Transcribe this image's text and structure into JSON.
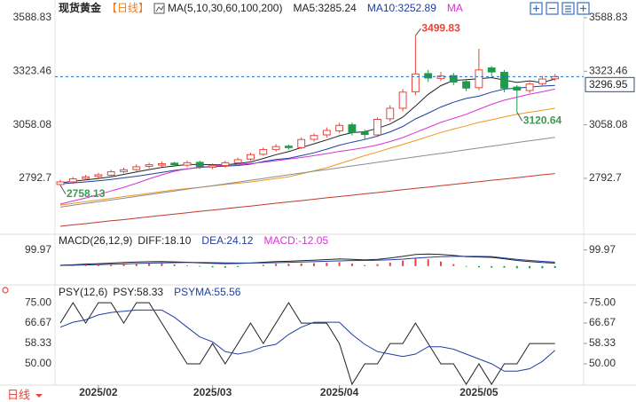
{
  "chart_data": [
    {
      "type": "candlestick",
      "title": "现货黄金",
      "period": "【日线】",
      "indicator": "MA(5,10,30,60,100,200)",
      "categories": [
        null,
        null,
        null,
        "2025/02",
        null,
        null,
        null,
        null,
        null,
        null,
        null,
        null,
        "2025/03",
        null,
        null,
        null,
        null,
        null,
        null,
        null,
        null,
        null,
        "2025/04",
        null,
        null,
        null,
        null,
        null,
        null,
        null,
        null,
        null,
        null,
        "2025/05",
        null,
        null,
        null,
        null,
        null,
        null
      ],
      "open": [
        2762,
        2775,
        2792,
        2802,
        2808,
        2826,
        2836,
        2852,
        2858,
        2868,
        2858,
        2872,
        2848,
        2856,
        2870,
        2888,
        2912,
        2936,
        2952,
        2945,
        2986,
        3008,
        3028,
        3058,
        3022,
        3008,
        3088,
        3140,
        3222,
        3312,
        3288,
        3302,
        3272,
        3242,
        3340,
        3318,
        3245,
        3228,
        3262,
        3286
      ],
      "high": [
        2785,
        2800,
        2810,
        2820,
        2835,
        2845,
        2862,
        2870,
        2876,
        2875,
        2880,
        2880,
        2866,
        2880,
        2895,
        2920,
        2945,
        2962,
        2960,
        2995,
        3015,
        3045,
        3068,
        3070,
        3035,
        3095,
        3155,
        3235,
        3499.83,
        3330,
        3320,
        3315,
        3285,
        3435,
        3350,
        3330,
        3255,
        3270,
        3300,
        3310
      ],
      "low": [
        2758.13,
        2765,
        2782,
        2795,
        2800,
        2818,
        2828,
        2842,
        2850,
        2850,
        2848,
        2840,
        2838,
        2846,
        2862,
        2880,
        2905,
        2925,
        2935,
        2938,
        2975,
        2995,
        3018,
        3005,
        2985,
        2998,
        3075,
        3125,
        3205,
        3270,
        3275,
        3255,
        3225,
        3230,
        3300,
        3220,
        3120.64,
        3215,
        3250,
        3275
      ],
      "close": [
        2775,
        2790,
        2800,
        2810,
        2825,
        2835,
        2850,
        2860,
        2865,
        2860,
        2870,
        2850,
        2855,
        2870,
        2885,
        2910,
        2935,
        2950,
        2945,
        2985,
        3005,
        3030,
        3055,
        3020,
        3010,
        3085,
        3140,
        3220,
        3310,
        3290,
        3300,
        3270,
        3240,
        3330,
        3320,
        3240,
        3230,
        3260,
        3285,
        3296.95
      ],
      "up_color": "#e8453c",
      "down_color": "#1f9a4b",
      "series": [
        {
          "name": "MA5:3285.24",
          "color": "#222222",
          "values": [
            2770,
            2778,
            2785,
            2792,
            2800,
            2812,
            2824,
            2836,
            2847,
            2854,
            2861,
            2861,
            2860,
            2859,
            2866,
            2874,
            2891,
            2910,
            2925,
            2945,
            2964,
            2983,
            3004,
            3019,
            3024,
            3040,
            3062,
            3096,
            3151,
            3209,
            3252,
            3278,
            3282,
            3286,
            3292,
            3280,
            3268,
            3276,
            3267,
            3285.24
          ]
        },
        {
          "name": "MA10:3252.89",
          "color": "#1f3fa0",
          "values": [
            2765,
            2770,
            2775,
            2780,
            2787,
            2795,
            2803,
            2812,
            2822,
            2832,
            2840,
            2846,
            2851,
            2853,
            2856,
            2863,
            2876,
            2886,
            2892,
            2905,
            2919,
            2937,
            2957,
            2972,
            2985,
            3002,
            3023,
            3050,
            3087,
            3116,
            3146,
            3170,
            3189,
            3200,
            3220,
            3235,
            3240,
            3245,
            3250,
            3252.89
          ]
        },
        {
          "name": "MA",
          "color": "#d633d6",
          "values": [
            2665,
            2680,
            2695,
            2712,
            2730,
            2748,
            2768,
            2790,
            2810,
            2828,
            2840,
            2848,
            2853,
            2858,
            2862,
            2866,
            2872,
            2880,
            2888,
            2896,
            2905,
            2915,
            2926,
            2935,
            2945,
            2958,
            2975,
            2995,
            3020,
            3045,
            3070,
            3090,
            3110,
            3135,
            3160,
            3180,
            3195,
            3210,
            3222,
            3235
          ]
        },
        {
          "color": "#f0961e",
          "values": [
            2660,
            2668,
            2677,
            2685,
            2693,
            2702,
            2710,
            2718,
            2727,
            2735,
            2742,
            2748,
            2755,
            2762,
            2768,
            2775,
            2783,
            2792,
            2800,
            2815,
            2830,
            2845,
            2865,
            2885,
            2905,
            2923,
            2942,
            2960,
            2980,
            3000,
            3020,
            3037,
            3053,
            3070,
            3083,
            3097,
            3110,
            3120,
            3130,
            3140
          ]
        },
        {
          "color": "#8c8c8c",
          "values": [
            2650,
            2659,
            2668,
            2677,
            2685,
            2694,
            2703,
            2712,
            2721,
            2730,
            2739,
            2748,
            2756,
            2765,
            2774,
            2783,
            2792,
            2801,
            2810,
            2819,
            2828,
            2836,
            2845,
            2854,
            2863,
            2872,
            2881,
            2890,
            2899,
            2908,
            2916,
            2925,
            2934,
            2943,
            2952,
            2961,
            2970,
            2979,
            2987,
            2996
          ]
        },
        {
          "color": "#c0392b",
          "values": [
            2555,
            2562,
            2568,
            2575,
            2582,
            2588,
            2595,
            2602,
            2609,
            2615,
            2622,
            2629,
            2635,
            2642,
            2649,
            2655,
            2662,
            2669,
            2676,
            2682,
            2689,
            2696,
            2702,
            2709,
            2716,
            2722,
            2729,
            2736,
            2743,
            2749,
            2756,
            2763,
            2769,
            2776,
            2783,
            2789,
            2796,
            2803,
            2810,
            2816
          ]
        }
      ],
      "annotations": [
        3499.83,
        2758.13,
        3120.64
      ],
      "ylim": [
        2524,
        3624
      ],
      "yticks": [
        3588.83,
        3323.46,
        3058.08,
        2792.7
      ]
    },
    {
      "type": "macd",
      "title": "MACD(26,12,9)",
      "series": [
        {
          "name": "DIFF:18.10",
          "color": "#222222",
          "values": [
            5,
            8,
            12,
            15,
            18,
            22,
            25,
            27,
            28,
            26,
            24,
            20,
            17,
            15,
            16,
            19,
            24,
            28,
            30,
            33,
            36,
            40,
            44,
            42,
            38,
            42,
            50,
            60,
            72,
            75,
            72,
            66,
            58,
            56,
            54,
            45,
            35,
            28,
            22,
            18.1
          ]
        },
        {
          "name": "DEA:24.12",
          "color": "#1f3fa0",
          "values": [
            4,
            5,
            7,
            9,
            11,
            13,
            16,
            18,
            20,
            21,
            22,
            22,
            21,
            20,
            19,
            19,
            20,
            21,
            23,
            25,
            27,
            30,
            32,
            34,
            35,
            36,
            39,
            43,
            49,
            54,
            58,
            60,
            60,
            60,
            59,
            50,
            42,
            35,
            29,
            24.12
          ]
        },
        {
          "name": "MACD:-12.05",
          "color": "#d633d6",
          "up_color": "#e8453c",
          "down_color": "#1f9a4b",
          "values": [
            2,
            6,
            10,
            12,
            14,
            18,
            18,
            18,
            16,
            10,
            4,
            -4,
            -8,
            -10,
            -6,
            0,
            8,
            14,
            14,
            16,
            18,
            20,
            24,
            16,
            6,
            12,
            22,
            34,
            46,
            42,
            28,
            12,
            -4,
            -8,
            -10,
            -10,
            -14,
            -14,
            -14,
            -12.05
          ]
        }
      ],
      "ylim": [
        -100,
        186
      ],
      "yticks": [
        99.97
      ]
    },
    {
      "type": "line",
      "title": "PSY(12,6)",
      "series": [
        {
          "name": "PSY:58.33",
          "color": "#222222",
          "values": [
            66.67,
            75,
            66.67,
            75,
            75,
            66.67,
            75,
            75,
            66.67,
            58.33,
            50,
            50,
            58.33,
            50,
            58.33,
            66.67,
            58.33,
            66.67,
            75,
            66.67,
            66.67,
            66.67,
            58.33,
            41.67,
            50,
            50,
            58.33,
            58.33,
            66.67,
            58.33,
            50,
            50,
            41.67,
            50,
            41.67,
            50,
            50,
            58.33,
            58.33,
            58.33
          ]
        },
        {
          "name": "PSYMA:55.56",
          "color": "#1f3fa0",
          "values": [
            65,
            67,
            68,
            70,
            71,
            71.5,
            72,
            72,
            72,
            69,
            65,
            61,
            59,
            55,
            54,
            55,
            57,
            58,
            62,
            65,
            67,
            67,
            67,
            62,
            58,
            55,
            54,
            53,
            54,
            57,
            57,
            56,
            54,
            52,
            50,
            47,
            47,
            48,
            51,
            55.56
          ]
        }
      ],
      "ylim": [
        41.3,
        81.2
      ],
      "yticks": [
        {
          "value": 75,
          "label": "75.00"
        },
        66.67,
        58.33,
        {
          "value": 50,
          "label": "50.00"
        }
      ]
    }
  ],
  "footer_button": "日线"
}
